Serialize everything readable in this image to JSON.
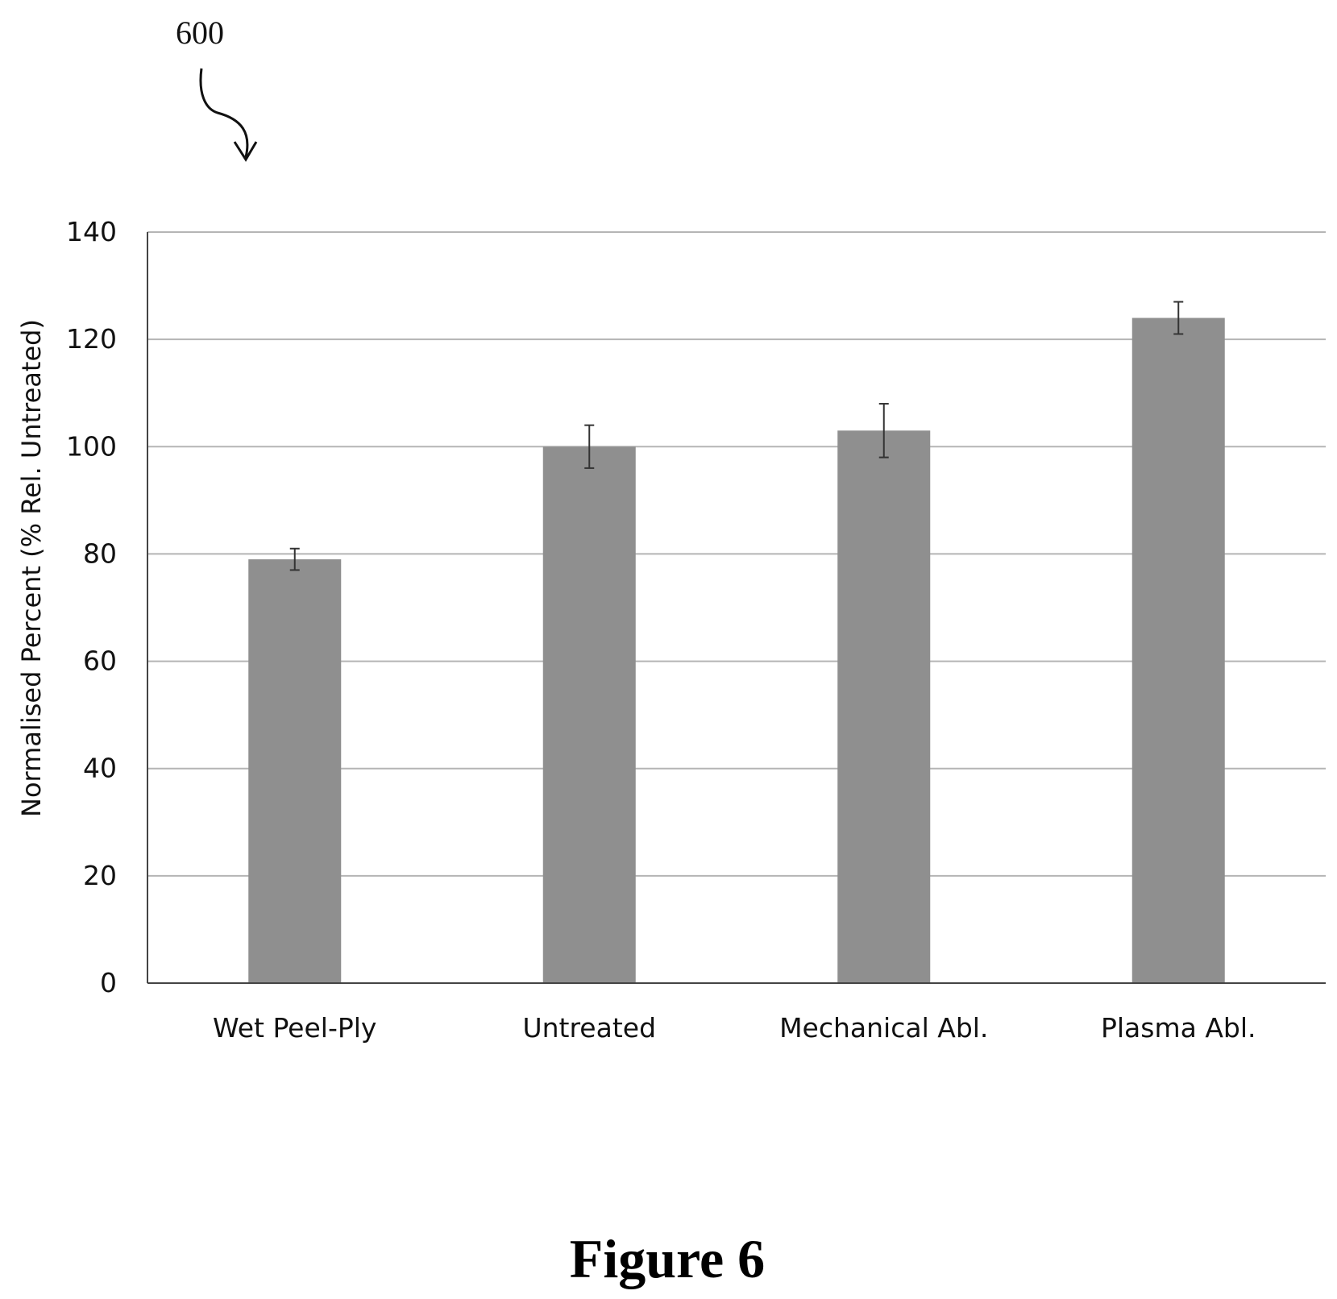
{
  "figure": {
    "ref_numeral": "600",
    "caption": "Figure 6"
  },
  "chart_data": {
    "type": "bar",
    "ylabel": "Normalised Percent (% Rel. Untreated)",
    "xlabel": "",
    "ylim": [
      0,
      140
    ],
    "yticks": [
      0,
      20,
      40,
      60,
      80,
      100,
      120,
      140
    ],
    "grid": true,
    "categories": [
      "Wet Peel-Ply",
      "Untreated",
      "Mechanical Abl.",
      "Plasma Abl."
    ],
    "values": [
      79,
      100,
      103,
      124
    ],
    "error": [
      2,
      4,
      5,
      3
    ],
    "bar_color": "#8f8f8f"
  }
}
